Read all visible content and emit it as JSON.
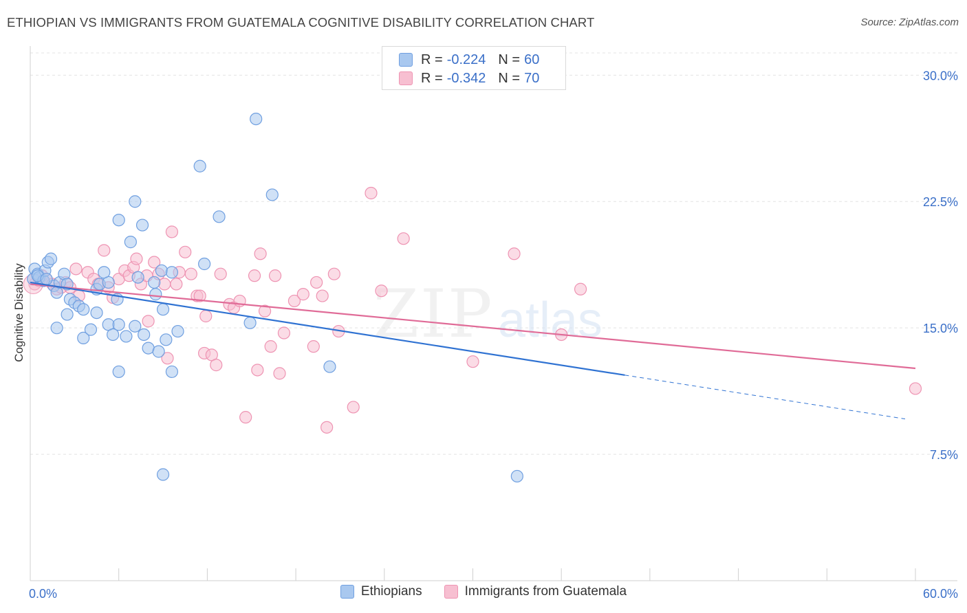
{
  "title": "ETHIOPIAN VS IMMIGRANTS FROM GUATEMALA COGNITIVE DISABILITY CORRELATION CHART",
  "source": "Source: ZipAtlas.com",
  "watermark": {
    "zip": "ZIP",
    "atlas": "atlas"
  },
  "legend_top": [
    {
      "r_label": "R =",
      "r_value": "-0.224",
      "n_label": "N =",
      "n_value": "60"
    },
    {
      "r_label": "R =",
      "r_value": "-0.342",
      "n_label": "N =",
      "n_value": "70"
    }
  ],
  "legend_bottom": [
    "Ethiopians",
    "Immigrants from Guatemala"
  ],
  "colors": {
    "blue_fill": "#a9c8ef",
    "blue_stroke": "#6f9fe0",
    "blue_line": "#2f72d2",
    "pink_fill": "#f7bfd1",
    "pink_stroke": "#ee93b2",
    "pink_line": "#e06b97",
    "tick_label": "#3a6fc8",
    "grid": "#e3e3e3"
  },
  "chart_data": {
    "type": "scatter",
    "title": "ETHIOPIAN VS IMMIGRANTS FROM GUATEMALA COGNITIVE DISABILITY CORRELATION CHART",
    "xlabel": "",
    "ylabel": "Cognitive Disability",
    "xlim": [
      0,
      60
    ],
    "ylim": [
      0,
      31.4
    ],
    "x_tick_labels": [
      "0.0%",
      "60.0%"
    ],
    "y_ticks": [
      7.5,
      15.0,
      22.5,
      30.0
    ],
    "y_tick_labels": [
      "7.5%",
      "15.0%",
      "22.5%",
      "30.0%"
    ],
    "grid": "horizontal dashed",
    "legend": "top-center",
    "series": [
      {
        "name": "Ethiopians",
        "trend": {
          "x0": 0,
          "y0": 17.7,
          "x1": 40.3,
          "y1": 12.2,
          "dash_to_x": 59.3,
          "dash_to_y": 9.6
        },
        "points": [
          [
            0.2,
            17.9
          ],
          [
            0.3,
            18.5
          ],
          [
            0.5,
            18.2
          ],
          [
            0.6,
            18.0
          ],
          [
            0.9,
            17.8
          ],
          [
            1.0,
            18.4
          ],
          [
            1.2,
            18.9
          ],
          [
            1.4,
            19.1
          ],
          [
            1.6,
            17.5
          ],
          [
            1.8,
            17.1
          ],
          [
            2.0,
            17.7
          ],
          [
            2.3,
            18.2
          ],
          [
            2.5,
            17.6
          ],
          [
            2.7,
            16.7
          ],
          [
            3.0,
            16.5
          ],
          [
            3.3,
            16.3
          ],
          [
            3.6,
            16.1
          ],
          [
            2.5,
            15.8
          ],
          [
            1.8,
            15.0
          ],
          [
            3.6,
            14.4
          ],
          [
            4.1,
            14.9
          ],
          [
            4.5,
            17.3
          ],
          [
            4.7,
            17.6
          ],
          [
            4.5,
            15.9
          ],
          [
            5.3,
            17.7
          ],
          [
            5.0,
            18.3
          ],
          [
            5.3,
            15.2
          ],
          [
            5.6,
            14.6
          ],
          [
            6.0,
            15.2
          ],
          [
            5.9,
            16.7
          ],
          [
            6.5,
            14.5
          ],
          [
            6.0,
            21.4
          ],
          [
            6.8,
            20.1
          ],
          [
            7.1,
            22.5
          ],
          [
            7.1,
            15.1
          ],
          [
            7.7,
            14.6
          ],
          [
            7.3,
            18.0
          ],
          [
            8.0,
            13.8
          ],
          [
            8.7,
            13.6
          ],
          [
            8.5,
            17.0
          ],
          [
            7.6,
            21.1
          ],
          [
            9.0,
            16.1
          ],
          [
            8.4,
            17.7
          ],
          [
            8.9,
            18.4
          ],
          [
            9.2,
            14.3
          ],
          [
            9.6,
            12.4
          ],
          [
            9.6,
            18.3
          ],
          [
            10.0,
            14.8
          ],
          [
            11.5,
            24.6
          ],
          [
            11.8,
            18.8
          ],
          [
            12.8,
            21.6
          ],
          [
            6.0,
            12.4
          ],
          [
            15.3,
            27.4
          ],
          [
            16.4,
            22.9
          ],
          [
            14.9,
            15.3
          ],
          [
            20.3,
            12.7
          ],
          [
            9.0,
            6.3
          ],
          [
            33.0,
            6.2
          ],
          [
            0.5,
            18.1
          ],
          [
            1.1,
            17.9
          ]
        ]
      },
      {
        "name": "Immigrants from Guatemala",
        "trend": {
          "x0": 0,
          "y0": 17.6,
          "x1": 60,
          "y1": 12.6
        },
        "points": [
          [
            0.3,
            17.6
          ],
          [
            0.6,
            17.8
          ],
          [
            0.8,
            18.1
          ],
          [
            1.1,
            17.9
          ],
          [
            1.5,
            17.6
          ],
          [
            1.8,
            17.3
          ],
          [
            2.1,
            17.4
          ],
          [
            2.4,
            17.7
          ],
          [
            2.7,
            17.4
          ],
          [
            3.1,
            18.5
          ],
          [
            3.3,
            16.9
          ],
          [
            3.9,
            18.3
          ],
          [
            4.3,
            17.9
          ],
          [
            4.6,
            17.6
          ],
          [
            5.0,
            19.6
          ],
          [
            5.3,
            17.4
          ],
          [
            5.6,
            16.8
          ],
          [
            6.0,
            17.9
          ],
          [
            6.4,
            18.4
          ],
          [
            6.7,
            18.1
          ],
          [
            7.0,
            18.6
          ],
          [
            7.2,
            19.1
          ],
          [
            7.5,
            17.6
          ],
          [
            7.9,
            18.1
          ],
          [
            8.0,
            15.4
          ],
          [
            8.4,
            18.9
          ],
          [
            8.7,
            18.2
          ],
          [
            9.1,
            17.6
          ],
          [
            9.3,
            13.2
          ],
          [
            9.6,
            20.7
          ],
          [
            9.9,
            17.6
          ],
          [
            10.1,
            18.3
          ],
          [
            10.5,
            19.5
          ],
          [
            10.9,
            18.2
          ],
          [
            11.3,
            16.9
          ],
          [
            11.5,
            16.9
          ],
          [
            11.8,
            13.5
          ],
          [
            11.9,
            15.7
          ],
          [
            12.3,
            13.4
          ],
          [
            12.6,
            12.8
          ],
          [
            12.9,
            18.2
          ],
          [
            13.5,
            16.4
          ],
          [
            13.8,
            16.2
          ],
          [
            14.2,
            16.6
          ],
          [
            14.6,
            9.7
          ],
          [
            15.2,
            18.1
          ],
          [
            15.4,
            12.5
          ],
          [
            15.6,
            19.4
          ],
          [
            15.9,
            16.0
          ],
          [
            16.3,
            13.9
          ],
          [
            16.6,
            18.1
          ],
          [
            16.9,
            12.3
          ],
          [
            17.2,
            14.7
          ],
          [
            17.9,
            16.6
          ],
          [
            18.5,
            17.0
          ],
          [
            19.2,
            13.9
          ],
          [
            19.4,
            17.7
          ],
          [
            19.8,
            16.9
          ],
          [
            20.1,
            9.1
          ],
          [
            20.6,
            18.2
          ],
          [
            20.9,
            14.8
          ],
          [
            21.9,
            10.3
          ],
          [
            23.1,
            23.0
          ],
          [
            23.8,
            17.2
          ],
          [
            25.3,
            20.3
          ],
          [
            30.0,
            13.0
          ],
          [
            32.8,
            19.4
          ],
          [
            36.0,
            14.6
          ],
          [
            37.3,
            17.3
          ],
          [
            60.0,
            11.4
          ]
        ]
      }
    ]
  }
}
